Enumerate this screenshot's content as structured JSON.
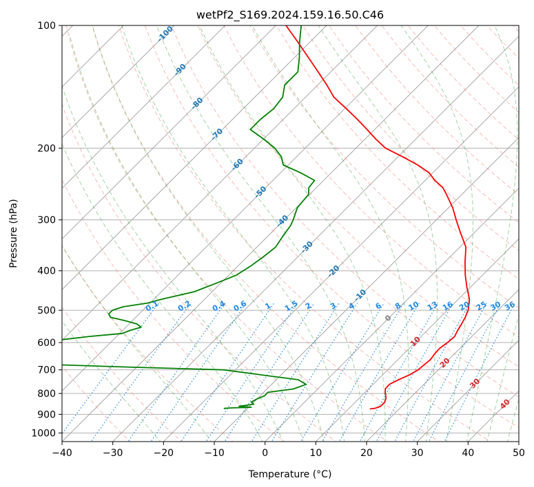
{
  "chart_data": {
    "type": "line",
    "title": "wetPf2_S169.2024.159.16.50.C46",
    "xlabel": "Temperature (°C)",
    "ylabel": "Pressure (hPa)",
    "xlim": [
      -40,
      50
    ],
    "ylim": [
      1050,
      100
    ],
    "y_scale": "log",
    "grid": true,
    "x_ticks": [
      -40,
      -30,
      -20,
      -10,
      0,
      10,
      20,
      30,
      40,
      50
    ],
    "y_ticks": [
      100,
      200,
      300,
      400,
      500,
      600,
      700,
      800,
      900,
      1000
    ],
    "skew_t": true,
    "colors": {
      "temperature": "#ff0000",
      "dewpoint": "#008000",
      "dry_adiabat": "#fa8072",
      "moist_adiabat": "#2ca02c",
      "mixing_ratio": "#1e88e5",
      "isotherm": "#808080",
      "isotherm_label_neg": "#1f77b4",
      "isotherm_label_pos": "#d62728"
    },
    "series": [
      {
        "key": "temperature",
        "p": [
          873,
          870,
          860,
          840,
          820,
          800,
          780,
          760,
          740,
          720,
          700,
          680,
          660,
          640,
          620,
          600,
          580,
          560,
          540,
          520,
          500,
          470,
          440,
          410,
          380,
          350,
          320,
          300,
          280,
          260,
          250,
          240,
          230,
          220,
          210,
          200,
          190,
          180,
          170,
          160,
          150,
          140,
          130,
          120,
          110,
          100
        ],
        "values": [
          14.2,
          15.1,
          15.8,
          15.8,
          15.2,
          14.2,
          13.3,
          13.2,
          14.1,
          15.3,
          16.0,
          16.2,
          16.4,
          16.1,
          16.0,
          16.4,
          16.6,
          16.0,
          15.5,
          14.9,
          14.1,
          12.2,
          9.4,
          6.6,
          3.9,
          1.2,
          -3.1,
          -6.1,
          -9.2,
          -13.0,
          -15.1,
          -18.1,
          -20.7,
          -24.5,
          -29.1,
          -34.2,
          -37.9,
          -41.5,
          -45.4,
          -49.7,
          -54.4,
          -58.2,
          -62.5,
          -67.2,
          -72.3,
          -78.0
        ]
      },
      {
        "key": "dewpoint",
        "p": [
          873,
          870,
          868,
          865,
          860,
          850,
          840,
          825,
          810,
          795,
          780,
          760,
          740,
          720,
          700,
          690,
          680,
          670,
          660,
          650,
          640,
          630,
          620,
          610,
          600,
          590,
          580,
          570,
          560,
          550,
          540,
          530,
          520,
          510,
          500,
          490,
          480,
          470,
          450,
          430,
          410,
          390,
          370,
          350,
          330,
          310,
          300,
          290,
          280,
          270,
          260,
          250,
          240,
          230,
          220,
          210,
          200,
          190,
          180,
          170,
          160,
          150,
          140,
          130,
          120,
          110,
          100
        ],
        "values": [
          -14.3,
          -14.6,
          -13.2,
          -9.5,
          -12.1,
          -9.6,
          -10.5,
          -10.0,
          -9.1,
          -9.2,
          -4.8,
          -3.2,
          -5.7,
          -14.0,
          -22.3,
          -40.1,
          -56.5,
          -66.0,
          -70.0,
          -72.0,
          -70.5,
          -64.0,
          -59.5,
          -62.5,
          -64.0,
          -60.0,
          -55.5,
          -49.5,
          -48.5,
          -47.0,
          -48.5,
          -51.5,
          -55.0,
          -56.0,
          -56.0,
          -54.5,
          -50.5,
          -48.5,
          -43.5,
          -41.0,
          -38.5,
          -37.5,
          -36.8,
          -36.3,
          -37.0,
          -37.6,
          -38.2,
          -39.0,
          -39.8,
          -40.0,
          -40.2,
          -41.5,
          -41.8,
          -46.0,
          -51.0,
          -53.0,
          -56.0,
          -60.0,
          -64.5,
          -64.5,
          -64.0,
          -64.5,
          -66.5,
          -66.5,
          -69.0,
          -72.0,
          -75.0
        ]
      }
    ],
    "isotherm_labels": [
      -100,
      -90,
      -80,
      -70,
      -60,
      -50,
      -40,
      -30,
      -20,
      -10,
      0,
      10,
      20,
      30,
      40
    ],
    "mixing_ratio_labels": [
      "0.1",
      "0.2",
      "0.4",
      "0.6",
      "1",
      "1.5",
      "2",
      "3",
      "4",
      "6",
      "8",
      "10",
      "13",
      "16",
      "20",
      "25",
      "30",
      "36"
    ]
  }
}
